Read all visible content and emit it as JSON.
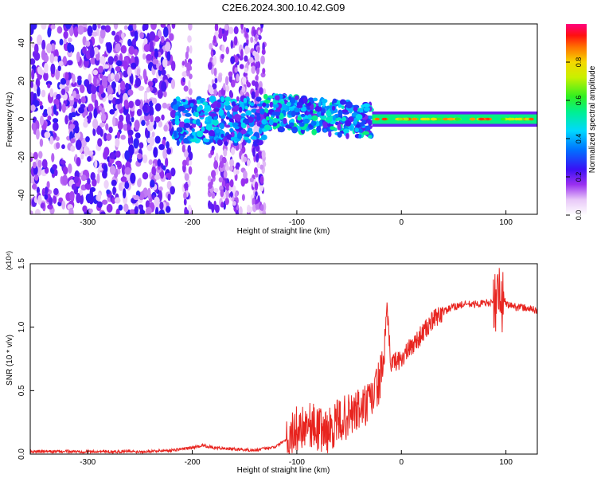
{
  "title": "C2E6.2024.300.10.42.G09",
  "chart_data": [
    {
      "type": "heatmap",
      "xlabel": "Height of straight line (km)",
      "ylabel": "Frequency (Hz)",
      "xlim": [
        -355,
        130
      ],
      "ylim": [
        -50,
        50
      ],
      "xticks": [
        -300,
        -200,
        -100,
        0,
        100
      ],
      "xtick_labels": [
        "-300",
        "-200",
        "-100",
        "0",
        "100"
      ],
      "yticks": [
        -40,
        -20,
        0,
        20,
        40
      ],
      "ytick_labels": [
        "-40",
        "-20",
        "0",
        "20",
        "40"
      ],
      "colorbar": {
        "label": "Normalized spectral amplitude",
        "range": [
          0,
          1
        ],
        "ticks": [
          0.0,
          0.2,
          0.4,
          0.6,
          0.8
        ],
        "tick_labels": [
          "0.0",
          "0.2",
          "0.4",
          "0.6",
          "0.8"
        ]
      },
      "regions": [
        {
          "x": [
            -355,
            -218
          ],
          "freq": [
            -50,
            50
          ],
          "amplitude": [
            0.0,
            0.25
          ],
          "pattern": "noise speckle"
        },
        {
          "x": [
            -218,
            -130
          ],
          "freq": [
            -50,
            50
          ],
          "amplitude": [
            0.0,
            0.2
          ],
          "pattern": "sparse vertical streaks"
        },
        {
          "x": [
            -218,
            -30
          ],
          "freq": [
            -15,
            12
          ],
          "amplitude": [
            0.1,
            0.55
          ],
          "pattern": "broad signal band"
        },
        {
          "x": [
            -28,
            130
          ],
          "freq": [
            -4,
            4
          ],
          "amplitude": [
            0.4,
            0.95
          ],
          "pattern": "narrow stable carrier at 0 Hz"
        }
      ]
    },
    {
      "type": "line",
      "xlabel": "Height of straight line (km)",
      "ylabel": "SNR (10 * v/v)",
      "y_scale_label": "(x10⁴)",
      "xlim": [
        -355,
        130
      ],
      "ylim": [
        0,
        1.5
      ],
      "xticks": [
        -300,
        -200,
        -100,
        0,
        100
      ],
      "xtick_labels": [
        "-300",
        "-200",
        "-100",
        "0",
        "100"
      ],
      "yticks": [
        0.0,
        0.5,
        1.0,
        1.5
      ],
      "ytick_labels": [
        "0.0",
        "0.5",
        "1.0",
        "1.5"
      ],
      "series": [
        {
          "color": "#e8241f",
          "x": [
            -355,
            -300,
            -250,
            -220,
            -200,
            -190,
            -180,
            -160,
            -140,
            -120,
            -110,
            -100,
            -90,
            -80,
            -70,
            -60,
            -50,
            -40,
            -30,
            -25,
            -20,
            -16,
            -14,
            -10,
            0,
            10,
            20,
            30,
            40,
            50,
            60,
            70,
            80,
            90,
            93,
            95,
            97,
            100,
            110,
            120,
            130
          ],
          "y": [
            0.02,
            0.02,
            0.02,
            0.03,
            0.05,
            0.07,
            0.05,
            0.04,
            0.03,
            0.06,
            0.12,
            0.2,
            0.25,
            0.2,
            0.18,
            0.26,
            0.3,
            0.35,
            0.4,
            0.5,
            0.6,
            0.8,
            1.15,
            0.72,
            0.75,
            0.85,
            0.95,
            1.05,
            1.12,
            1.16,
            1.18,
            1.18,
            1.19,
            1.2,
            1.3,
            1.05,
            1.25,
            1.18,
            1.16,
            1.15,
            1.13
          ]
        }
      ]
    }
  ]
}
